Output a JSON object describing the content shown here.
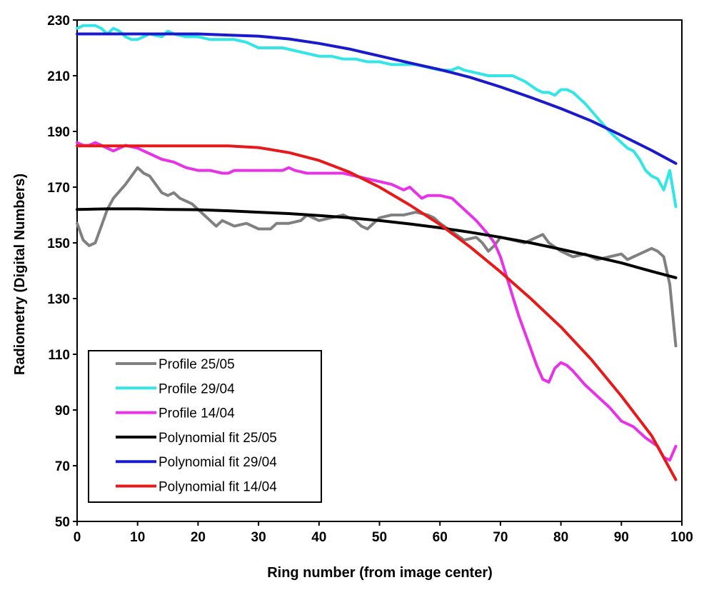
{
  "chart_data": {
    "type": "line",
    "title": "",
    "xlabel": "Ring number (from image center)",
    "ylabel": "Radiometry (Digital Numbers)",
    "xlim": [
      0,
      100
    ],
    "ylim": [
      50,
      230
    ],
    "xticks": [
      0,
      10,
      20,
      30,
      40,
      50,
      60,
      70,
      80,
      90,
      100
    ],
    "yticks": [
      50,
      70,
      90,
      110,
      130,
      150,
      170,
      190,
      210,
      230
    ],
    "grid": false,
    "legend_position": "bottom-left",
    "series": [
      {
        "name": "Profile 25/05",
        "color": "#808080",
        "x": [
          0,
          1,
          2,
          3,
          4,
          5,
          6,
          8,
          10,
          11,
          12,
          13,
          14,
          15,
          16,
          17,
          18,
          19,
          20,
          21,
          22,
          23,
          24,
          25,
          26,
          28,
          30,
          32,
          33,
          35,
          37,
          38,
          40,
          42,
          44,
          46,
          47,
          48,
          50,
          52,
          54,
          56,
          58,
          59,
          60,
          62,
          64,
          66,
          67,
          68,
          69,
          70,
          72,
          74,
          76,
          77,
          78,
          80,
          82,
          84,
          86,
          88,
          90,
          91,
          92,
          94,
          95,
          96,
          97,
          98,
          99
        ],
        "y": [
          157,
          151,
          149,
          150,
          156,
          162,
          166,
          171,
          177,
          175,
          174,
          171,
          168,
          167,
          168,
          166,
          165,
          164,
          162,
          160,
          158,
          156,
          158,
          157,
          156,
          157,
          155,
          155,
          157,
          157,
          158,
          160,
          158,
          159,
          160,
          158,
          156,
          155,
          159,
          160,
          160,
          161,
          160,
          159,
          157,
          154,
          151,
          152,
          150,
          147,
          149,
          152,
          151,
          150,
          152,
          153,
          150,
          147,
          145,
          146,
          144,
          145,
          146,
          144,
          145,
          147,
          148,
          147,
          145,
          135,
          113
        ]
      },
      {
        "name": "Profile 29/04",
        "color": "#33e6e6",
        "x": [
          0,
          1,
          2,
          3,
          4,
          5,
          6,
          7,
          8,
          9,
          10,
          12,
          14,
          15,
          16,
          18,
          20,
          22,
          24,
          26,
          28,
          30,
          32,
          34,
          36,
          38,
          40,
          42,
          44,
          46,
          48,
          50,
          52,
          53,
          54,
          56,
          58,
          60,
          62,
          63,
          64,
          66,
          68,
          70,
          72,
          73,
          74,
          76,
          77,
          78,
          79,
          80,
          81,
          82,
          84,
          86,
          88,
          90,
          91,
          92,
          93,
          94,
          95,
          96,
          97,
          98,
          99
        ],
        "y": [
          227,
          228,
          228,
          228,
          227,
          225,
          227,
          226,
          224,
          223,
          223,
          225,
          224,
          226,
          225,
          224,
          224,
          223,
          223,
          223,
          222,
          220,
          220,
          220,
          219,
          218,
          217,
          217,
          216,
          216,
          215,
          215,
          214,
          214,
          214,
          214,
          213,
          212,
          212,
          213,
          212,
          211,
          210,
          210,
          210,
          209,
          208,
          205,
          204,
          204,
          203,
          205,
          205,
          204,
          200,
          195,
          190,
          186,
          184,
          183,
          180,
          176,
          174,
          173,
          169,
          176,
          163
        ]
      },
      {
        "name": "Profile 14/04",
        "color": "#e633e6",
        "x": [
          0,
          1,
          2,
          3,
          4,
          5,
          6,
          7,
          8,
          10,
          12,
          14,
          16,
          18,
          20,
          22,
          24,
          25,
          26,
          28,
          30,
          32,
          34,
          35,
          36,
          38,
          40,
          42,
          44,
          46,
          48,
          50,
          52,
          53,
          54,
          55,
          56,
          57,
          58,
          60,
          62,
          64,
          66,
          68,
          69,
          70,
          71,
          72,
          73,
          74,
          75,
          76,
          77,
          78,
          79,
          80,
          81,
          82,
          84,
          86,
          88,
          90,
          92,
          94,
          96,
          97,
          98,
          99
        ],
        "y": [
          186,
          185,
          185,
          186,
          185,
          184,
          183,
          184,
          185,
          184,
          182,
          180,
          179,
          177,
          176,
          176,
          175,
          175,
          176,
          176,
          176,
          176,
          176,
          177,
          176,
          175,
          175,
          175,
          175,
          174,
          173,
          172,
          171,
          170,
          169,
          170,
          168,
          166,
          167,
          167,
          166,
          162,
          158,
          153,
          150,
          145,
          138,
          131,
          124,
          118,
          112,
          106,
          101,
          100,
          105,
          107,
          106,
          104,
          99,
          95,
          91,
          86,
          84,
          80,
          77,
          73,
          72,
          77
        ]
      },
      {
        "name": "Polynomial fit 25/05",
        "color": "#000000",
        "x": [
          0,
          5,
          10,
          15,
          20,
          25,
          30,
          35,
          40,
          45,
          50,
          55,
          60,
          65,
          70,
          75,
          80,
          85,
          90,
          95,
          99
        ],
        "y": [
          162,
          162.2,
          162.2,
          162,
          161.9,
          161.5,
          161,
          160.5,
          159.8,
          159,
          158,
          156.8,
          155.4,
          153.8,
          152,
          150,
          147.7,
          145.3,
          142.8,
          139.8,
          137.5
        ]
      },
      {
        "name": "Polynomial fit 29/04",
        "color": "#1a1acc",
        "x": [
          0,
          5,
          10,
          15,
          20,
          25,
          30,
          35,
          40,
          45,
          50,
          55,
          60,
          65,
          70,
          75,
          80,
          85,
          90,
          95,
          99
        ],
        "y": [
          225,
          225,
          225,
          225,
          225,
          224.6,
          224.2,
          223.2,
          221.6,
          219.6,
          217.1,
          214.6,
          212.2,
          209.4,
          206,
          202.2,
          198.2,
          193.8,
          188.6,
          183.2,
          178.5
        ]
      },
      {
        "name": "Polynomial fit 14/04",
        "color": "#e61a1a",
        "x": [
          0,
          5,
          10,
          15,
          20,
          25,
          30,
          35,
          40,
          45,
          50,
          55,
          60,
          65,
          70,
          75,
          80,
          85,
          90,
          95,
          99
        ],
        "y": [
          184.8,
          184.8,
          184.8,
          184.8,
          184.8,
          184.8,
          184.2,
          182.4,
          179.6,
          175.4,
          170,
          163.6,
          156.6,
          148.5,
          139.6,
          130,
          119.8,
          108.2,
          95,
          80.8,
          65
        ]
      }
    ]
  }
}
